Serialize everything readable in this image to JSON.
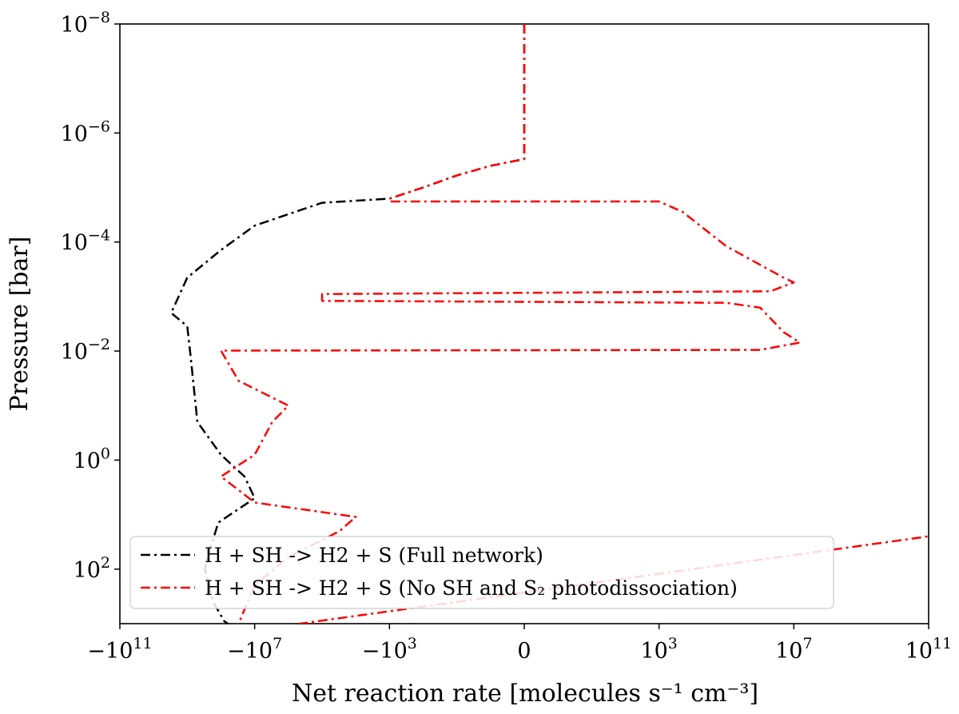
{
  "chart_data": {
    "type": "line",
    "xlabel": "Net reaction rate [molecules s⁻¹ cm⁻³]",
    "ylabel": "Pressure [bar]",
    "x_scale": "symlog",
    "y_scale": "log",
    "y_inverted": true,
    "xlim": [
      -100000000000.0,
      100000000000.0
    ],
    "ylim_bar": [
      1e-08,
      1000.0
    ],
    "xticks": [
      {
        "value": -100000000000.0,
        "base": "−10",
        "exp": "11"
      },
      {
        "value": -10000000.0,
        "base": "−10",
        "exp": "7"
      },
      {
        "value": -1000.0,
        "base": "−10",
        "exp": "3"
      },
      {
        "value": 0,
        "base": "0",
        "exp": ""
      },
      {
        "value": 1000.0,
        "base": "10",
        "exp": "3"
      },
      {
        "value": 10000000.0,
        "base": "10",
        "exp": "7"
      },
      {
        "value": 100000000000.0,
        "base": "10",
        "exp": "11"
      }
    ],
    "yticks": [
      {
        "value": 1e-08,
        "base": "10",
        "exp": "−8"
      },
      {
        "value": 1e-06,
        "base": "10",
        "exp": "−6"
      },
      {
        "value": 0.0001,
        "base": "10",
        "exp": "−4"
      },
      {
        "value": 0.01,
        "base": "10",
        "exp": "−2"
      },
      {
        "value": 1,
        "base": "10",
        "exp": "0"
      },
      {
        "value": 100,
        "base": "10",
        "exp": "2"
      }
    ],
    "grid": false,
    "legend_position": "lower-left",
    "series": [
      {
        "name": "H + SH -> H2 + S (Full network)",
        "color": "#000000",
        "linestyle": "dashdot",
        "points": [
          [
            0,
            1e-08
          ],
          [
            0,
            1e-07
          ],
          [
            0,
            1e-06
          ],
          [
            0,
            3e-06
          ],
          [
            -1,
            4e-06
          ],
          [
            -10,
            6e-06
          ],
          [
            -100,
            1e-05
          ],
          [
            -1000.0,
            1.6e-05
          ],
          [
            -100000.0,
            1.9e-05
          ],
          [
            -10000000.0,
            5e-05
          ],
          [
            -100000000.0,
            0.00014
          ],
          [
            -1000000000.0,
            0.00045
          ],
          [
            -3000000000.0,
            0.002
          ],
          [
            -1000000000.0,
            0.0035
          ],
          [
            -800000000.0,
            0.012
          ],
          [
            -500000000.0,
            0.2
          ],
          [
            -100000000.0,
            0.8
          ],
          [
            -20000000.0,
            2
          ],
          [
            -10000000.0,
            5
          ],
          [
            -120000000.0,
            14
          ],
          [
            -250000000.0,
            60
          ],
          [
            -300000000.0,
            100
          ],
          [
            -170000000.0,
            400
          ],
          [
            -80000000.0,
            900
          ],
          [
            -25000000.0,
            1500
          ]
        ]
      },
      {
        "name": "H + SH -> H2 + S (No SH and S₂ photodissociation)",
        "color": "#ff0000",
        "linestyle": "dashdot",
        "points": [
          [
            0,
            1e-08
          ],
          [
            0,
            1e-07
          ],
          [
            0,
            1e-06
          ],
          [
            0,
            3e-06
          ],
          [
            -1,
            4e-06
          ],
          [
            -10,
            6e-06
          ],
          [
            -100,
            1e-05
          ],
          [
            -1000.0,
            1.6e-05
          ],
          [
            -1000.0,
            1.8e-05
          ],
          [
            1000.0,
            1.8e-05
          ],
          [
            5000.0,
            2.8e-05
          ],
          [
            100000.0,
            0.00012
          ],
          [
            5000000.0,
            0.00045
          ],
          [
            10000000.0,
            0.00055
          ],
          [
            2000000.0,
            0.0008
          ],
          [
            -100000.0,
            0.0009
          ],
          [
            -100000.0,
            0.0012
          ],
          [
            100000.0,
            0.0013
          ],
          [
            1000000.0,
            0.0016
          ],
          [
            5000000.0,
            0.0045
          ],
          [
            15000000.0,
            0.007
          ],
          [
            1000000.0,
            0.0095
          ],
          [
            -100000000.0,
            0.0098
          ],
          [
            -30000000.0,
            0.035
          ],
          [
            -1000000.0,
            0.1
          ],
          [
            -3000000.0,
            0.2
          ],
          [
            -10000000.0,
            0.8
          ],
          [
            -100000000.0,
            2
          ],
          [
            -10000000.0,
            6
          ],
          [
            -10000.0,
            11
          ],
          [
            -30000.0,
            20
          ],
          [
            -1000000.0,
            60
          ],
          [
            -10000000.0,
            200
          ],
          [
            -30000000.0,
            1000
          ],
          [
            -50000000.0,
            1500
          ],
          [
            100000000000.0,
            25
          ]
        ]
      }
    ]
  }
}
